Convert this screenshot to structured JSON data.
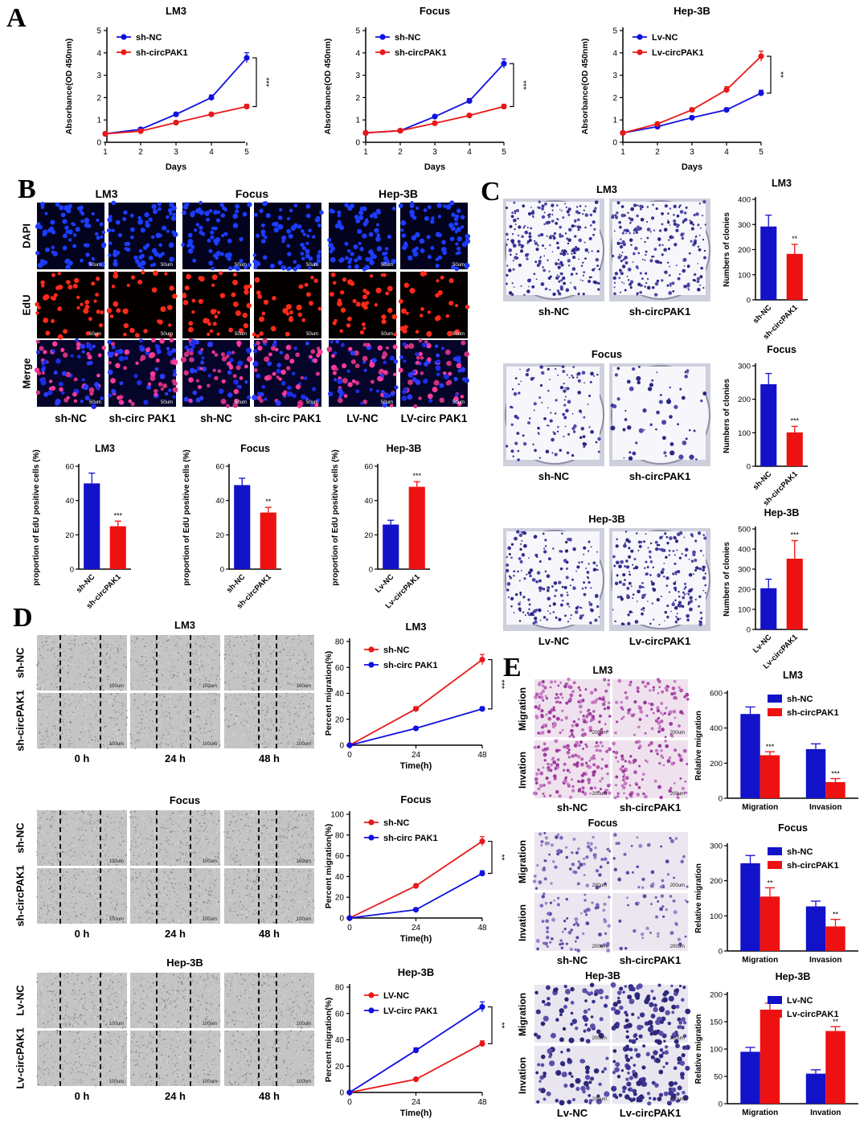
{
  "panels": {
    "A": "A",
    "B": "B",
    "C": "C",
    "D": "D",
    "E": "E"
  },
  "chart_data": [
    {
      "id": "A-LM3",
      "type": "line",
      "title": "LM3",
      "xlabel": "Days",
      "ylabel": "Absorbance(OD 450nm)",
      "x": [
        1,
        2,
        3,
        4,
        5
      ],
      "ylim": [
        0,
        5
      ],
      "yticks": [
        0,
        1,
        2,
        3,
        4,
        5
      ],
      "series": [
        {
          "name": "sh-NC",
          "color": "#1010e0",
          "values": [
            0.38,
            0.58,
            1.25,
            2.0,
            3.78
          ]
        },
        {
          "name": "sh-circPAK1",
          "color": "#e81818",
          "values": [
            0.38,
            0.5,
            0.88,
            1.25,
            1.6
          ]
        }
      ],
      "significance": "***"
    },
    {
      "id": "A-Focus",
      "type": "line",
      "title": "Focus",
      "xlabel": "Days",
      "ylabel": "Absorbance(OD 450nm)",
      "x": [
        1,
        2,
        3,
        4,
        5
      ],
      "ylim": [
        0,
        5
      ],
      "yticks": [
        0,
        1,
        2,
        3,
        4,
        5
      ],
      "series": [
        {
          "name": "sh-NC",
          "color": "#1010e0",
          "values": [
            0.42,
            0.52,
            1.15,
            1.85,
            3.52
          ]
        },
        {
          "name": "sh-circPAK1",
          "color": "#e81818",
          "values": [
            0.42,
            0.52,
            0.85,
            1.2,
            1.6
          ]
        }
      ],
      "significance": "***"
    },
    {
      "id": "A-Hep3B",
      "type": "line",
      "title": "Hep-3B",
      "xlabel": "Days",
      "ylabel": "Absorbance(OD 450nm)",
      "x": [
        1,
        2,
        3,
        4,
        5
      ],
      "ylim": [
        0,
        5
      ],
      "yticks": [
        0,
        1,
        2,
        3,
        4,
        5
      ],
      "series": [
        {
          "name": "Lv-NC",
          "color": "#1010e0",
          "values": [
            0.42,
            0.7,
            1.1,
            1.45,
            2.2
          ]
        },
        {
          "name": "Lv-circPAK1",
          "color": "#e81818",
          "values": [
            0.42,
            0.82,
            1.45,
            2.35,
            3.85
          ]
        }
      ],
      "significance": "**"
    },
    {
      "id": "B-LM3",
      "type": "bar",
      "title": "LM3",
      "ylabel": "proportion of EdU positive cells (%)",
      "categories": [
        "sh-NC",
        "sh-circPAK1"
      ],
      "values": [
        50,
        25
      ],
      "errors": [
        6,
        3
      ],
      "colors": [
        "#1212c8",
        "#ee1111"
      ],
      "ylim": [
        0,
        60
      ],
      "yticks": [
        0,
        20,
        40,
        60
      ],
      "marks": [
        "",
        "***"
      ]
    },
    {
      "id": "B-Focus",
      "type": "bar",
      "title": "Focus",
      "ylabel": "proportion of EdU positive cells (%)",
      "categories": [
        "sh-NC",
        "sh-circPAK1"
      ],
      "values": [
        49,
        33
      ],
      "errors": [
        4,
        3
      ],
      "colors": [
        "#1212c8",
        "#ee1111"
      ],
      "ylim": [
        0,
        60
      ],
      "yticks": [
        0,
        20,
        40,
        60
      ],
      "marks": [
        "",
        "**"
      ]
    },
    {
      "id": "B-Hep3B",
      "type": "bar",
      "title": "Hep-3B",
      "ylabel": "proportion of EdU positive cells (%)",
      "categories": [
        "Lv-NC",
        "Lv-circPAK1"
      ],
      "values": [
        26,
        48
      ],
      "errors": [
        2.5,
        3
      ],
      "colors": [
        "#1212c8",
        "#ee1111"
      ],
      "ylim": [
        0,
        60
      ],
      "yticks": [
        0,
        20,
        40,
        60
      ],
      "marks": [
        "",
        "***"
      ]
    },
    {
      "id": "C-LM3",
      "type": "bar",
      "title": "LM3",
      "ylabel": "Numbers of clonies",
      "categories": [
        "sh-NC",
        "sh-circPAK1"
      ],
      "values": [
        292,
        183
      ],
      "errors": [
        45,
        38
      ],
      "colors": [
        "#1212c8",
        "#ee1111"
      ],
      "ylim": [
        0,
        400
      ],
      "yticks": [
        0,
        100,
        200,
        300,
        400
      ],
      "marks": [
        "",
        "**"
      ]
    },
    {
      "id": "C-Focus",
      "type": "bar",
      "title": "Focus",
      "ylabel": "Numbers of clonies",
      "categories": [
        "sh-NC",
        "sh-circPAK1"
      ],
      "values": [
        245,
        101
      ],
      "errors": [
        32,
        18
      ],
      "colors": [
        "#1212c8",
        "#ee1111"
      ],
      "ylim": [
        0,
        300
      ],
      "yticks": [
        0,
        100,
        200,
        300
      ],
      "marks": [
        "",
        "***"
      ]
    },
    {
      "id": "C-Hep3B",
      "type": "bar",
      "title": "Hep-3B",
      "ylabel": "Numbers of clonies",
      "categories": [
        "Lv-NC",
        "Lv-circPAK1"
      ],
      "values": [
        205,
        352
      ],
      "errors": [
        45,
        90
      ],
      "colors": [
        "#1212c8",
        "#ee1111"
      ],
      "ylim": [
        0,
        500
      ],
      "yticks": [
        0,
        100,
        200,
        300,
        400,
        500
      ],
      "marks": [
        "",
        "***"
      ]
    },
    {
      "id": "D-LM3",
      "type": "line",
      "title": "LM3",
      "xlabel": "Time(h)",
      "ylabel": "Percent migration(%)",
      "x": [
        0,
        24,
        48
      ],
      "ylim": [
        0,
        80
      ],
      "yticks": [
        0,
        20,
        40,
        60,
        80
      ],
      "series": [
        {
          "name": "sh-NC",
          "color": "#e81818",
          "values": [
            0,
            28,
            66
          ]
        },
        {
          "name": "sh-circ PAK1",
          "color": "#1010e0",
          "values": [
            0,
            13,
            28
          ]
        }
      ],
      "significance": "***"
    },
    {
      "id": "D-Focus",
      "type": "line",
      "title": "Focus",
      "xlabel": "Time(h)",
      "ylabel": "Percent migration(%)",
      "x": [
        0,
        24,
        48
      ],
      "ylim": [
        0,
        100
      ],
      "yticks": [
        0,
        20,
        40,
        60,
        80,
        100
      ],
      "series": [
        {
          "name": "sh-NC",
          "color": "#e81818",
          "values": [
            0,
            31,
            74
          ]
        },
        {
          "name": "sh-circ PAK1",
          "color": "#1010e0",
          "values": [
            0,
            8,
            43
          ]
        }
      ],
      "significance": "**"
    },
    {
      "id": "D-Hep3B",
      "type": "line",
      "title": "Hep-3B",
      "xlabel": "Time(h)",
      "ylabel": "Percent migration(%)",
      "x": [
        0,
        24,
        48
      ],
      "ylim": [
        0,
        80
      ],
      "yticks": [
        0,
        20,
        40,
        60,
        80
      ],
      "series": [
        {
          "name": "LV-NC",
          "color": "#e81818",
          "values": [
            0,
            10,
            37
          ]
        },
        {
          "name": "LV-circ PAK1",
          "color": "#1010e0",
          "values": [
            0,
            32,
            65
          ]
        }
      ],
      "significance": "**"
    },
    {
      "id": "E-LM3",
      "type": "bar",
      "title": "LM3",
      "ylabel": "Relative migration",
      "categories": [
        "Migration",
        "Invasion"
      ],
      "ylim": [
        0,
        600
      ],
      "yticks": [
        0,
        200,
        400,
        600
      ],
      "series": [
        {
          "name": "sh-NC",
          "color": "#1212c8",
          "values": [
            480,
            280
          ],
          "errors": [
            40,
            30
          ]
        },
        {
          "name": "sh-circPAK1",
          "color": "#ee1111",
          "values": [
            245,
            92
          ],
          "errors": [
            20,
            20
          ]
        }
      ],
      "marks": [
        [
          "",
          "***"
        ],
        [
          "",
          "***"
        ]
      ]
    },
    {
      "id": "E-Focus",
      "type": "bar",
      "title": "Focus",
      "ylabel": "Relative migration",
      "categories": [
        "Migration",
        "Invasion"
      ],
      "ylim": [
        0,
        300
      ],
      "yticks": [
        0,
        100,
        200,
        300
      ],
      "series": [
        {
          "name": "sh-NC",
          "color": "#1212c8",
          "values": [
            250,
            127
          ],
          "errors": [
            22,
            15
          ]
        },
        {
          "name": "sh-circPAK1",
          "color": "#ee1111",
          "values": [
            155,
            70
          ],
          "errors": [
            25,
            20
          ]
        }
      ],
      "marks": [
        [
          "",
          "**"
        ],
        [
          "",
          "**"
        ]
      ]
    },
    {
      "id": "E-Hep3B",
      "type": "bar",
      "title": "Hep-3B",
      "ylabel": "Relative migration",
      "categories": [
        "Migration",
        "Invation"
      ],
      "ylim": [
        0,
        200
      ],
      "yticks": [
        0,
        50,
        100,
        150,
        200
      ],
      "series": [
        {
          "name": "Lv-NC",
          "color": "#1212c8",
          "values": [
            95,
            55
          ],
          "errors": [
            8,
            7
          ]
        },
        {
          "name": "Lv-circPAK1",
          "color": "#ee1111",
          "values": [
            172,
            133
          ],
          "errors": [
            12,
            8
          ]
        }
      ],
      "marks": [
        [
          "",
          "*"
        ],
        [
          "",
          "**"
        ]
      ]
    }
  ],
  "B_images": {
    "groups": [
      "LM3",
      "Focus",
      "Hep-3B"
    ],
    "rows": [
      "DAPI",
      "EdU",
      "Merge"
    ],
    "cols": [
      "sh-NC",
      "sh-circ PAK1",
      "sh-NC",
      "sh-circ PAK1",
      "LV-NC",
      "LV-circ PAK1"
    ],
    "scale": "50um"
  },
  "C_images": {
    "groups": [
      {
        "title": "LM3",
        "labels": [
          "sh-NC",
          "sh-circPAK1"
        ]
      },
      {
        "title": "Focus",
        "labels": [
          "sh-NC",
          "sh-circPAK1"
        ]
      },
      {
        "title": "Hep-3B",
        "labels": [
          "Lv-NC",
          "Lv-circPAK1"
        ]
      }
    ]
  },
  "D_images": {
    "groups": [
      {
        "title": "LM3",
        "rows": [
          "sh-NC",
          "sh-circPAK1"
        ]
      },
      {
        "title": "Focus",
        "rows": [
          "sh-NC",
          "sh-circPAK1"
        ]
      },
      {
        "title": "Hep-3B",
        "rows": [
          "Lv-NC",
          "Lv-circPAK1"
        ]
      }
    ],
    "times": [
      "0 h",
      "24 h",
      "48 h"
    ],
    "scale": "100um"
  },
  "E_images": {
    "groups": [
      {
        "title": "LM3",
        "labels": [
          "sh-NC",
          "sh-circPAK1"
        ]
      },
      {
        "title": "Focus",
        "labels": [
          "sh-NC",
          "sh-circPAK1"
        ]
      },
      {
        "title": "Hep-3B",
        "labels": [
          "Lv-NC",
          "Lv-circPAK1"
        ]
      }
    ],
    "rows": [
      "Migration",
      "Invation"
    ],
    "scale": "200um"
  }
}
